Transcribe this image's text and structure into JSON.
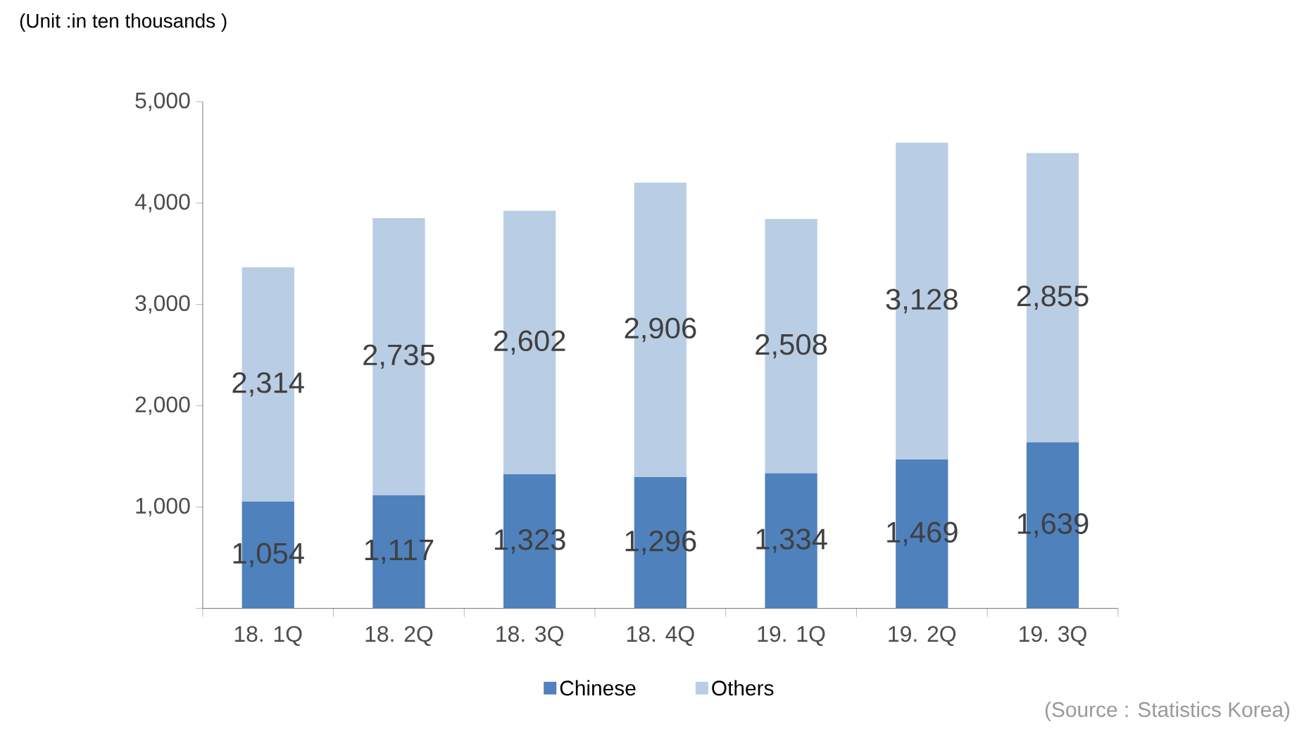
{
  "chart_data": {
    "type": "bar",
    "stacked": true,
    "ylabel": "(Unit :in ten thousands )",
    "categories": [
      "18. 1Q",
      "18. 2Q",
      "18. 3Q",
      "18. 4Q",
      "19. 1Q",
      "19. 2Q",
      "19. 3Q"
    ],
    "series": [
      {
        "name": "Chinese",
        "color": "#4f81bd",
        "values": [
          1054,
          1117,
          1323,
          1296,
          1334,
          1469,
          1639
        ],
        "value_labels": [
          "1,054",
          "1,117",
          "1,323",
          "1,296",
          "1,334",
          "1,469",
          "1,639"
        ]
      },
      {
        "name": "Others",
        "color": "#b9cde5",
        "values": [
          2314,
          2735,
          2602,
          2906,
          2508,
          3128,
          2855
        ],
        "value_labels": [
          "2,314",
          "2,735",
          "2,602",
          "2,906",
          "2,508",
          "3,128",
          "2,855"
        ]
      }
    ],
    "ylim": [
      0,
      5000
    ],
    "yticks": [
      {
        "value": 0,
        "label": null
      },
      {
        "value": 1000,
        "label": "1,000"
      },
      {
        "value": 2000,
        "label": "2,000"
      },
      {
        "value": 3000,
        "label": "3,000"
      },
      {
        "value": 4000,
        "label": "4,000"
      },
      {
        "value": 5000,
        "label": "5,000"
      }
    ],
    "legend": "bottom",
    "annotations": [
      "(Source : Statistics Korea)"
    ]
  }
}
